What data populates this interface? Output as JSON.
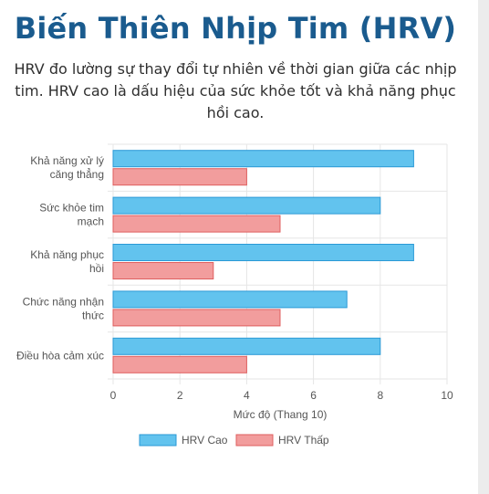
{
  "header": {
    "title": "Biến Thiên Nhịp Tim (HRV)",
    "description_lines": [
      "HRV đo lường sự thay đổi tự nhiên về thời gian giữa các nhịp",
      "tim. HRV cao là dấu hiệu của sức khỏe tốt và khả năng phục",
      "hồi cao."
    ]
  },
  "chart_data": {
    "type": "bar",
    "orientation": "horizontal",
    "categories": [
      [
        "Khả năng xử lý",
        "căng thẳng"
      ],
      [
        "Sức khỏe tim",
        "mạch"
      ],
      [
        "Khả năng phục",
        "hồi"
      ],
      [
        "Chức năng nhận",
        "thức"
      ],
      [
        "Điều hòa cảm xúc"
      ]
    ],
    "series": [
      {
        "name": "HRV Cao",
        "values": [
          9,
          8,
          9,
          7,
          8
        ],
        "color": "#62c3ee",
        "border_color": "#2b9ad6"
      },
      {
        "name": "HRV Thấp",
        "values": [
          4,
          5,
          3,
          5,
          4
        ],
        "color": "#f29d9d",
        "border_color": "#df5f5f"
      }
    ],
    "xlabel": "Mức độ (Thang 10)",
    "xlim": [
      0,
      10
    ],
    "x_ticks": [
      "0",
      "2",
      "4",
      "6",
      "8",
      "10"
    ],
    "grid": true,
    "legend_position": "bottom"
  }
}
